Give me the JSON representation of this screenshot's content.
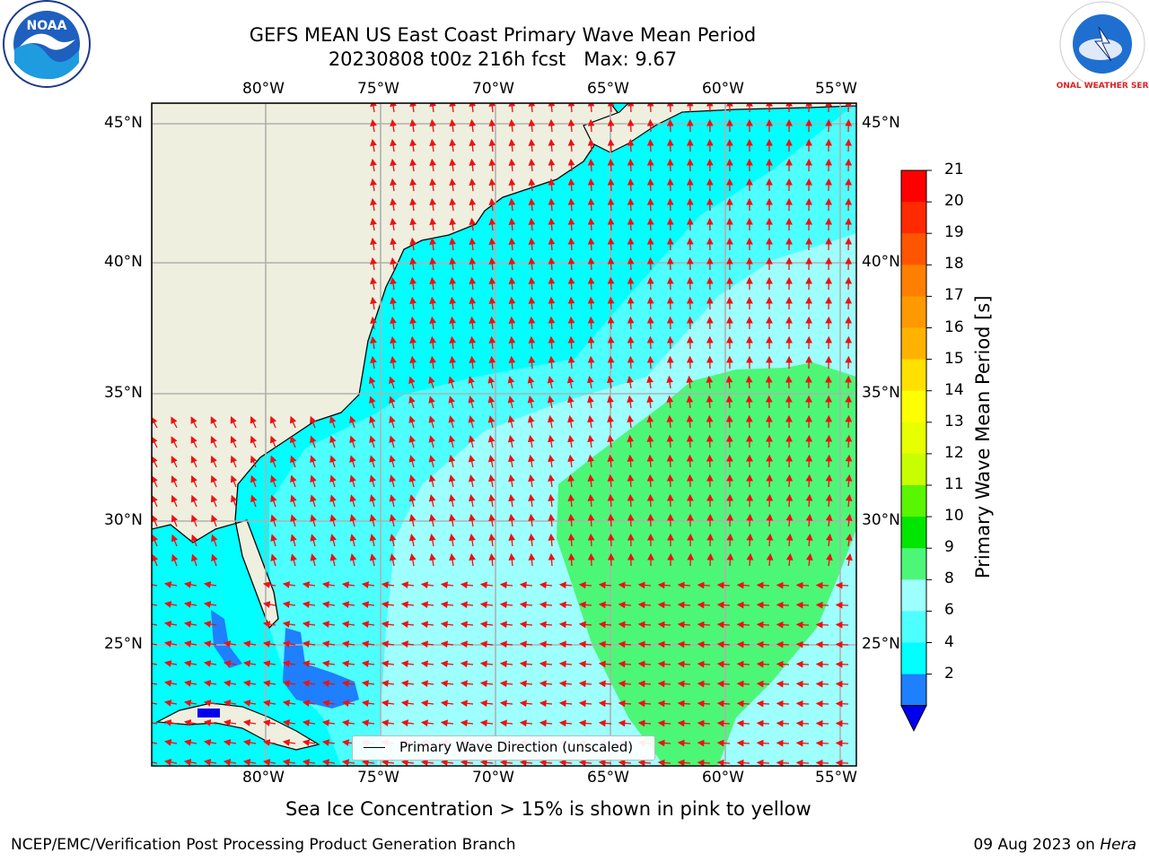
{
  "title": {
    "line1": "GEFS MEAN US East Coast Primary Wave Mean Period",
    "line2": "20230808 t00z 216h fcst   Max: 9.67"
  },
  "logos": {
    "left": {
      "name": "noaa-logo",
      "text": "NOAA"
    },
    "right": {
      "name": "nws-logo",
      "text": "NATIONAL WEATHER SERVICE"
    }
  },
  "map": {
    "lon_ticks": [
      "80°W",
      "75°W",
      "70°W",
      "65°W",
      "60°W",
      "55°W"
    ],
    "lat_ticks": [
      "45°N",
      "40°N",
      "35°N",
      "30°N",
      "25°N"
    ],
    "extent": {
      "lon_min": -85,
      "lon_max": -54.3,
      "lat_min": 20.5,
      "lat_max": 46
    },
    "land_color": "#efefdf",
    "arrow_color": "#ee1111",
    "legend_label": "Primary Wave Direction (unscaled)"
  },
  "colorbar": {
    "label": "Primary Wave Mean Period [s]",
    "ticks": [
      "21",
      "20",
      "19",
      "18",
      "17",
      "16",
      "15",
      "14",
      "13",
      "12",
      "11",
      "10",
      "9",
      "8",
      "6",
      "4",
      "2"
    ],
    "colors_top_to_bottom": [
      "#ff0000",
      "#ff2a00",
      "#ff5500",
      "#ff7f00",
      "#ff9900",
      "#ffb300",
      "#ffe000",
      "#ffff00",
      "#e8ff00",
      "#c8ff00",
      "#5af500",
      "#00e600",
      "#4cf778",
      "#9effff",
      "#4dffff",
      "#00ffff",
      "#1e7fff"
    ],
    "extend_color": "#0000ee"
  },
  "caption": "Sea Ice Concentration > 15% is shown in pink to yellow",
  "footer": {
    "left": "NCEP/EMC/Verification Post Processing Product Generation Branch",
    "right_date": "09 Aug 2023 on ",
    "right_machine": "Hera"
  }
}
